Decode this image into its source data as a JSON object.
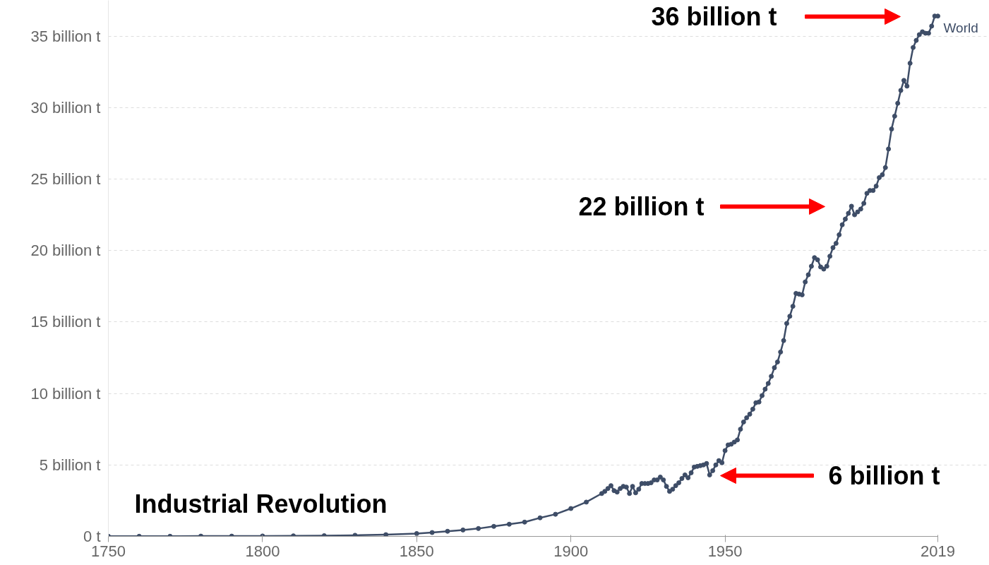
{
  "chart_data": {
    "type": "line",
    "marker": "circle",
    "line_style": "solid",
    "grid": "y",
    "xlim": [
      1750,
      2019
    ],
    "xticks": [
      1750,
      1800,
      1850,
      1900,
      1950,
      2019
    ],
    "ylim": [
      0,
      37.5
    ],
    "yticks": [
      {
        "value": 0,
        "label": "0 t"
      },
      {
        "value": 5,
        "label": "5 billion t"
      },
      {
        "value": 10,
        "label": "10 billion t"
      },
      {
        "value": 15,
        "label": "15 billion t"
      },
      {
        "value": 20,
        "label": "20 billion t"
      },
      {
        "value": 25,
        "label": "25 billion t"
      },
      {
        "value": 30,
        "label": "30 billion t"
      },
      {
        "value": 35,
        "label": "35 billion t"
      }
    ],
    "series": [
      {
        "name": "World",
        "color": "#3e4d67",
        "x": [
          1750,
          1760,
          1770,
          1780,
          1790,
          1800,
          1810,
          1820,
          1830,
          1840,
          1850,
          1855,
          1860,
          1865,
          1870,
          1875,
          1880,
          1885,
          1890,
          1895,
          1900,
          1905,
          1910,
          1911,
          1912,
          1913,
          1914,
          1915,
          1916,
          1917,
          1918,
          1919,
          1920,
          1921,
          1922,
          1923,
          1924,
          1925,
          1926,
          1927,
          1928,
          1929,
          1930,
          1931,
          1932,
          1933,
          1934,
          1935,
          1936,
          1937,
          1938,
          1939,
          1940,
          1941,
          1942,
          1943,
          1944,
          1945,
          1946,
          1947,
          1948,
          1949,
          1950,
          1951,
          1952,
          1953,
          1954,
          1955,
          1956,
          1957,
          1958,
          1959,
          1960,
          1961,
          1962,
          1963,
          1964,
          1965,
          1966,
          1967,
          1968,
          1969,
          1970,
          1971,
          1972,
          1973,
          1974,
          1975,
          1976,
          1977,
          1978,
          1979,
          1980,
          1981,
          1982,
          1983,
          1984,
          1985,
          1986,
          1987,
          1988,
          1989,
          1990,
          1991,
          1992,
          1993,
          1994,
          1995,
          1996,
          1997,
          1998,
          1999,
          2000,
          2001,
          2002,
          2003,
          2004,
          2005,
          2006,
          2007,
          2008,
          2009,
          2010,
          2011,
          2012,
          2013,
          2014,
          2015,
          2016,
          2017,
          2018,
          2019
        ],
        "values": [
          0.01,
          0.01,
          0.01,
          0.02,
          0.02,
          0.03,
          0.04,
          0.05,
          0.08,
          0.12,
          0.2,
          0.27,
          0.36,
          0.45,
          0.55,
          0.7,
          0.85,
          1.0,
          1.3,
          1.55,
          1.95,
          2.4,
          3.0,
          3.15,
          3.35,
          3.55,
          3.2,
          3.1,
          3.35,
          3.5,
          3.45,
          3.0,
          3.5,
          3.05,
          3.3,
          3.7,
          3.7,
          3.7,
          3.75,
          3.95,
          3.95,
          4.15,
          3.95,
          3.5,
          3.15,
          3.3,
          3.55,
          3.75,
          4.05,
          4.3,
          4.1,
          4.45,
          4.85,
          4.9,
          4.95,
          5.0,
          5.1,
          4.3,
          4.6,
          5.0,
          5.3,
          5.15,
          6.0,
          6.4,
          6.45,
          6.6,
          6.75,
          7.5,
          8.0,
          8.3,
          8.55,
          8.9,
          9.35,
          9.4,
          9.85,
          10.3,
          10.7,
          11.2,
          11.8,
          12.2,
          12.9,
          13.7,
          14.9,
          15.4,
          16.1,
          17.0,
          16.95,
          16.9,
          17.8,
          18.3,
          18.9,
          19.5,
          19.35,
          18.85,
          18.7,
          18.9,
          19.6,
          20.2,
          20.5,
          21.1,
          21.8,
          22.2,
          22.6,
          23.1,
          22.5,
          22.7,
          22.9,
          23.3,
          24.0,
          24.2,
          24.2,
          24.5,
          25.1,
          25.3,
          25.8,
          27.1,
          28.5,
          29.4,
          30.3,
          31.2,
          31.9,
          31.5,
          33.1,
          34.2,
          34.7,
          35.1,
          35.3,
          35.2,
          35.2,
          35.7,
          36.4,
          36.4
        ]
      }
    ],
    "annotations": [
      "36 billion t",
      "22 billion t",
      "6 billion t",
      "Industrial Revolution"
    ]
  }
}
